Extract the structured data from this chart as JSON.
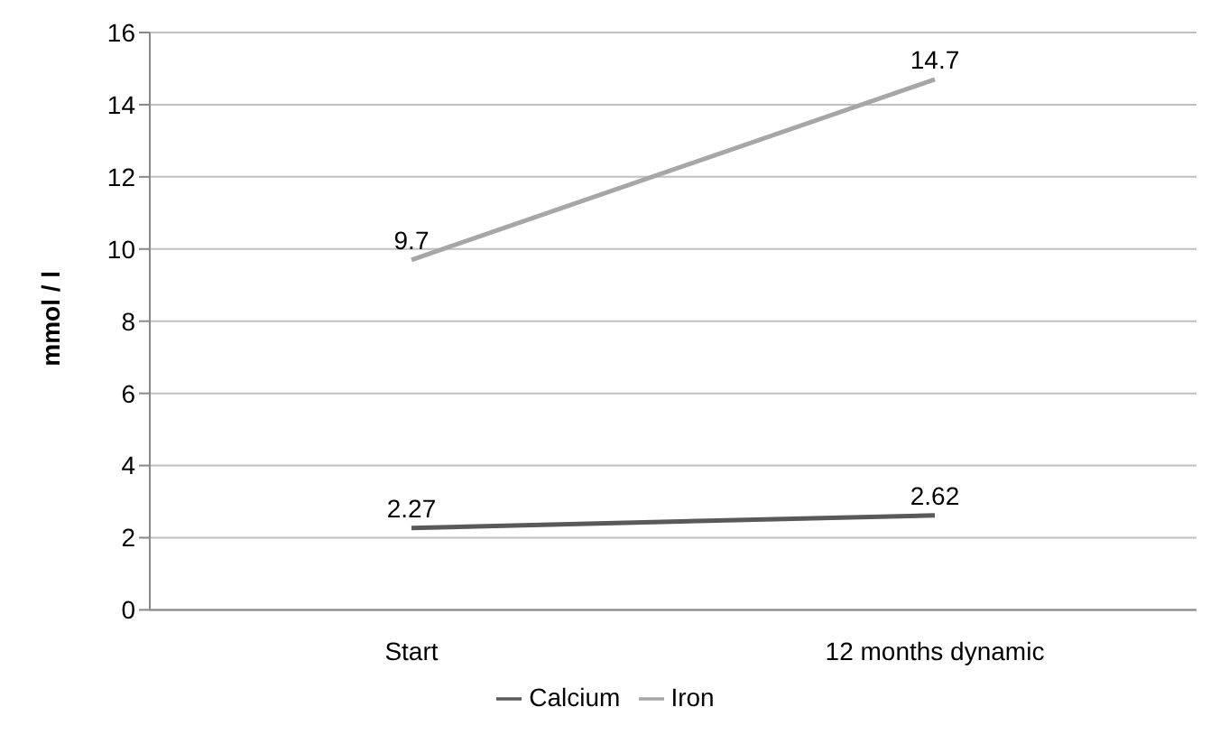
{
  "chart_data": {
    "type": "line",
    "ylabel": "mmol / l",
    "categories": [
      "Start",
      "12 months dynamic"
    ],
    "series": [
      {
        "name": "Calcium",
        "color": "#595959",
        "values": [
          2.27,
          2.62
        ]
      },
      {
        "name": "Iron",
        "color": "#a6a6a6",
        "values": [
          9.7,
          14.7
        ]
      }
    ],
    "ylim": [
      0,
      16
    ],
    "yticks": [
      0,
      2,
      4,
      6,
      8,
      10,
      12,
      14,
      16
    ],
    "grid": "y",
    "legend": "bottom",
    "data_labels": true,
    "marker": "none",
    "line_style": "solid"
  }
}
